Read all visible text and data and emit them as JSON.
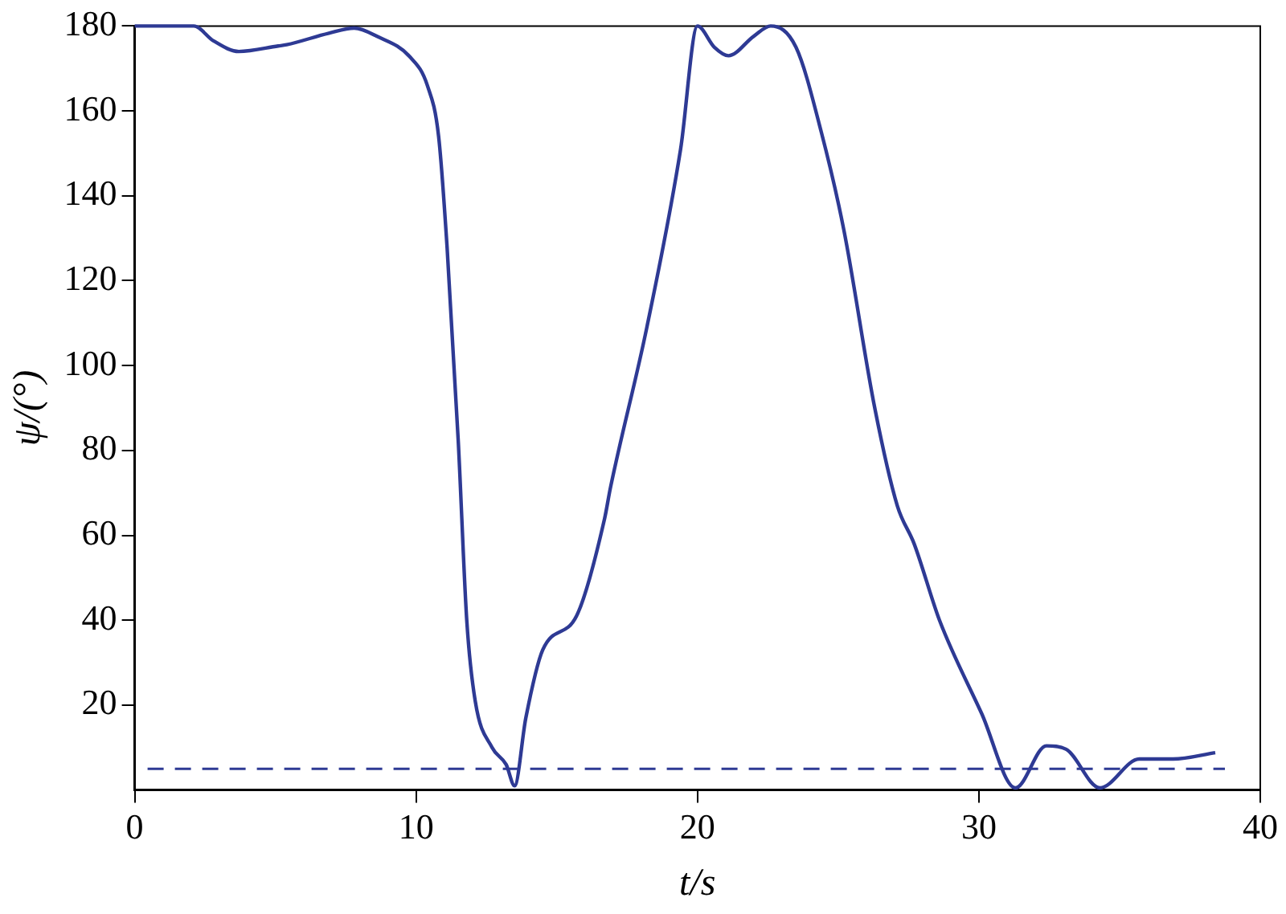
{
  "chart_data": {
    "type": "line",
    "xlabel": "t/s",
    "ylabel": "ψ/(°)",
    "xlim": [
      0,
      40
    ],
    "xticks": [
      0,
      10,
      20,
      30,
      40
    ],
    "ylim": [
      0,
      180
    ],
    "yticks": [
      20,
      40,
      60,
      80,
      100,
      120,
      140,
      160,
      180
    ],
    "grid": false,
    "legend": false,
    "marker": "none",
    "line_style": "solid",
    "series": [
      {
        "color": "#2e3a94",
        "x": [
          0,
          2.1,
          2.8,
          3.7,
          5.1,
          5.4,
          6.9,
          7.8,
          8.6,
          9.8,
          10.4,
          10.8,
          11.1,
          11.5,
          11.8,
          12.1,
          12.7,
          13.2,
          13.5,
          13.9,
          14.5,
          15.7,
          16.7,
          16.9,
          18.2,
          19.4,
          20,
          20.6,
          21.1,
          22,
          22.6,
          23.5,
          24.4,
          25.2,
          26.3,
          27.1,
          27.7,
          28.6,
          30.1,
          31.3,
          32.4,
          33.1,
          34.3,
          35.7,
          36.9,
          38.4
        ],
        "values": [
          180,
          180,
          176.5,
          174,
          175.3,
          175.6,
          178.3,
          179.5,
          177.6,
          172.6,
          166,
          154,
          128,
          82,
          40,
          21,
          10,
          6,
          1,
          17,
          33,
          41,
          64,
          71,
          109,
          151,
          180,
          175,
          173,
          177.6,
          180,
          175,
          155,
          132,
          90,
          67,
          58,
          40,
          18,
          0.5,
          10.4,
          9.6,
          0.5,
          7.3,
          7.3,
          8.8
        ]
      }
    ],
    "ref_lines": [
      {
        "axis": "y",
        "value": 5,
        "color": "#2e3a94",
        "line_style": "dashed"
      }
    ]
  }
}
